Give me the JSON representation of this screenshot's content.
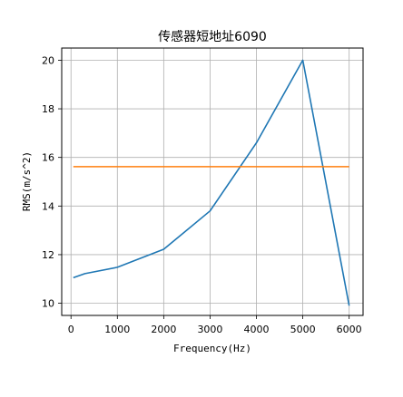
{
  "chart_data": {
    "type": "line",
    "title": "传感器短地址6090",
    "xlabel": "Frequency(Hz)",
    "ylabel": "RMS(m/s^2)",
    "xlim": [
      -200,
      6300
    ],
    "ylim": [
      9.5,
      20.5
    ],
    "xticks": [
      0,
      1000,
      2000,
      3000,
      4000,
      5000,
      6000
    ],
    "yticks": [
      10,
      12,
      14,
      16,
      18,
      20
    ],
    "grid": true,
    "colors": {
      "series1": "#1f77b4",
      "series2": "#ff7f0e"
    },
    "series": [
      {
        "x": [
          50,
          300,
          1000,
          2000,
          3000,
          4000,
          5000,
          6000
        ],
        "y": [
          11.05,
          11.22,
          11.48,
          12.22,
          13.8,
          16.6,
          20.0,
          9.9
        ]
      },
      {
        "x": [
          50,
          6000
        ],
        "y": [
          15.62,
          15.62
        ]
      }
    ]
  }
}
